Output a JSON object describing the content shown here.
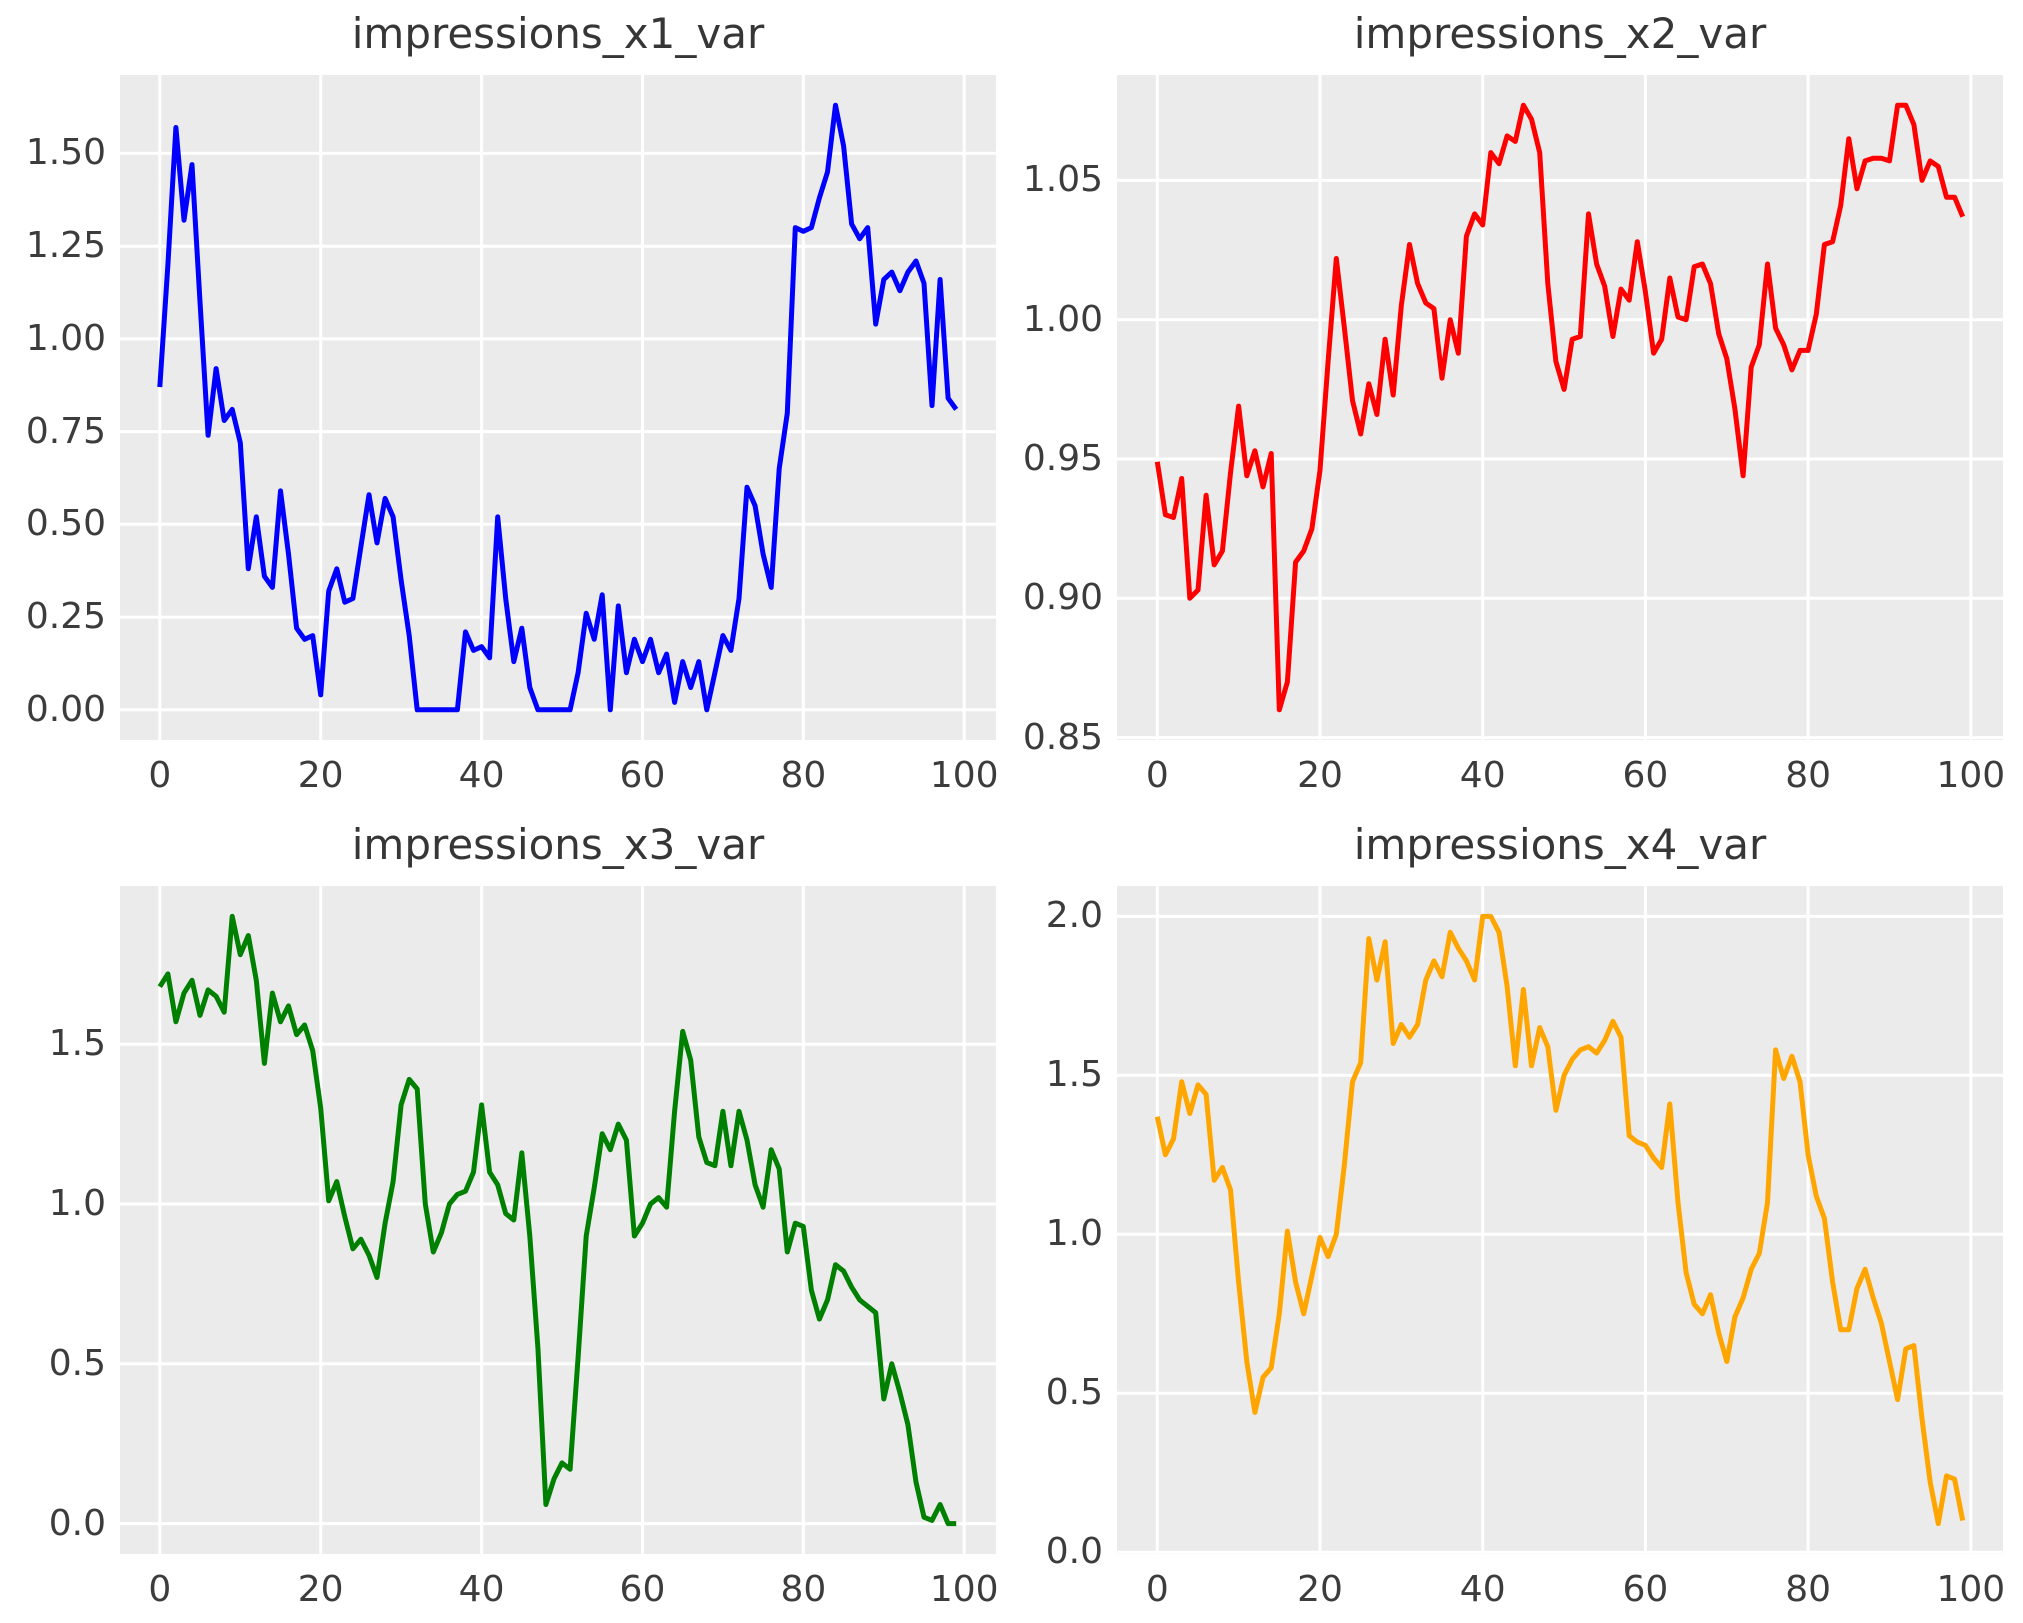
{
  "figure": {
    "background": "#ffffff",
    "plot_background": "#ebebeb",
    "grid_color": "#ffffff",
    "tick_color": "#3c3c3c",
    "title_color": "#363636"
  },
  "chart_data": [
    {
      "type": "line",
      "title": "impressions_x1_var",
      "xlabel": "",
      "ylabel": "",
      "color": "#0000ff",
      "grid": true,
      "legend": false,
      "x_start": 0,
      "x_step": 1,
      "xlim": [
        -4.95,
        103.95
      ],
      "ylim": [
        -0.0815,
        1.7115
      ],
      "xtick_values": [
        0,
        20,
        40,
        60,
        80,
        100
      ],
      "xtick_labels": [
        "0",
        "20",
        "40",
        "60",
        "80",
        "100"
      ],
      "ytick_values": [
        0.0,
        0.25,
        0.5,
        0.75,
        1.0,
        1.25,
        1.5
      ],
      "ytick_labels": [
        "0.00",
        "0.25",
        "0.50",
        "0.75",
        "1.00",
        "1.25",
        "1.50"
      ],
      "values": [
        0.87,
        1.2,
        1.57,
        1.32,
        1.47,
        1.1,
        0.74,
        0.92,
        0.78,
        0.81,
        0.72,
        0.38,
        0.52,
        0.36,
        0.33,
        0.59,
        0.42,
        0.22,
        0.19,
        0.2,
        0.04,
        0.32,
        0.38,
        0.29,
        0.3,
        0.44,
        0.58,
        0.45,
        0.57,
        0.52,
        0.35,
        0.2,
        0.0,
        0.0,
        0.0,
        0.0,
        0.0,
        0.0,
        0.21,
        0.16,
        0.17,
        0.14,
        0.52,
        0.3,
        0.13,
        0.22,
        0.06,
        0.0,
        0.0,
        0.0,
        0.0,
        0.0,
        0.1,
        0.26,
        0.19,
        0.31,
        0.0,
        0.28,
        0.1,
        0.19,
        0.13,
        0.19,
        0.1,
        0.15,
        0.02,
        0.13,
        0.06,
        0.13,
        0.0,
        0.1,
        0.2,
        0.16,
        0.3,
        0.6,
        0.55,
        0.42,
        0.33,
        0.65,
        0.8,
        1.3,
        1.29,
        1.3,
        1.38,
        1.45,
        1.63,
        1.52,
        1.31,
        1.27,
        1.3,
        1.04,
        1.16,
        1.18,
        1.13,
        1.18,
        1.21,
        1.15,
        0.82,
        1.16,
        0.84,
        0.81
      ]
    },
    {
      "type": "line",
      "title": "impressions_x2_var",
      "xlabel": "",
      "ylabel": "",
      "color": "#ff0000",
      "grid": true,
      "legend": false,
      "x_start": 0,
      "x_step": 1,
      "xlim": [
        -4.95,
        103.95
      ],
      "ylim": [
        0.84915,
        1.08785
      ],
      "xtick_values": [
        0,
        20,
        40,
        60,
        80,
        100
      ],
      "xtick_labels": [
        "0",
        "20",
        "40",
        "60",
        "80",
        "100"
      ],
      "ytick_values": [
        0.85,
        0.9,
        0.95,
        1.0,
        1.05
      ],
      "ytick_labels": [
        "0.85",
        "0.90",
        "0.95",
        "1.00",
        "1.05"
      ],
      "values": [
        0.949,
        0.93,
        0.929,
        0.943,
        0.9,
        0.903,
        0.937,
        0.912,
        0.917,
        0.945,
        0.969,
        0.944,
        0.953,
        0.94,
        0.952,
        0.86,
        0.87,
        0.913,
        0.917,
        0.925,
        0.946,
        0.985,
        1.022,
        0.997,
        0.971,
        0.959,
        0.977,
        0.966,
        0.993,
        0.973,
        1.005,
        1.027,
        1.013,
        1.006,
        1.004,
        0.979,
        1.0,
        0.988,
        1.03,
        1.038,
        1.034,
        1.06,
        1.056,
        1.066,
        1.064,
        1.077,
        1.072,
        1.06,
        1.013,
        0.985,
        0.975,
        0.993,
        0.994,
        1.038,
        1.02,
        1.012,
        0.994,
        1.011,
        1.007,
        1.028,
        1.01,
        0.988,
        0.993,
        1.015,
        1.001,
        1.0,
        1.019,
        1.02,
        1.013,
        0.995,
        0.986,
        0.968,
        0.944,
        0.983,
        0.991,
        1.02,
        0.997,
        0.991,
        0.982,
        0.989,
        0.989,
        1.002,
        1.027,
        1.028,
        1.041,
        1.065,
        1.047,
        1.057,
        1.058,
        1.058,
        1.057,
        1.077,
        1.077,
        1.07,
        1.05,
        1.057,
        1.055,
        1.044,
        1.044,
        1.037
      ]
    },
    {
      "type": "line",
      "title": "impressions_x3_var",
      "xlabel": "",
      "ylabel": "",
      "color": "#008000",
      "grid": true,
      "legend": false,
      "x_start": 0,
      "x_step": 1,
      "xlim": [
        -4.95,
        103.95
      ],
      "ylim": [
        -0.095,
        1.995
      ],
      "xtick_values": [
        0,
        20,
        40,
        60,
        80,
        100
      ],
      "xtick_labels": [
        "0",
        "20",
        "40",
        "60",
        "80",
        "100"
      ],
      "ytick_values": [
        0.0,
        0.5,
        1.0,
        1.5
      ],
      "ytick_labels": [
        "0.0",
        "0.5",
        "1.0",
        "1.5"
      ],
      "values": [
        1.68,
        1.72,
        1.57,
        1.66,
        1.7,
        1.59,
        1.67,
        1.65,
        1.6,
        1.9,
        1.78,
        1.84,
        1.7,
        1.44,
        1.66,
        1.57,
        1.62,
        1.53,
        1.56,
        1.48,
        1.3,
        1.01,
        1.07,
        0.96,
        0.86,
        0.89,
        0.84,
        0.77,
        0.94,
        1.07,
        1.31,
        1.39,
        1.36,
        1.0,
        0.85,
        0.91,
        1.0,
        1.03,
        1.04,
        1.1,
        1.31,
        1.1,
        1.06,
        0.97,
        0.95,
        1.16,
        0.9,
        0.55,
        0.06,
        0.14,
        0.19,
        0.17,
        0.52,
        0.9,
        1.05,
        1.22,
        1.17,
        1.25,
        1.2,
        0.9,
        0.94,
        1.0,
        1.02,
        0.99,
        1.29,
        1.54,
        1.45,
        1.21,
        1.13,
        1.12,
        1.29,
        1.12,
        1.29,
        1.2,
        1.06,
        0.99,
        1.17,
        1.11,
        0.85,
        0.94,
        0.93,
        0.73,
        0.64,
        0.7,
        0.81,
        0.79,
        0.74,
        0.7,
        0.68,
        0.66,
        0.39,
        0.5,
        0.41,
        0.31,
        0.13,
        0.02,
        0.01,
        0.06,
        0.0,
        0.0
      ]
    },
    {
      "type": "line",
      "title": "impressions_x4_var",
      "xlabel": "",
      "ylabel": "",
      "color": "#ffa500",
      "grid": true,
      "legend": false,
      "x_start": 0,
      "x_step": 1,
      "xlim": [
        -4.95,
        103.95
      ],
      "ylim": [
        -0.0055,
        2.0955
      ],
      "xtick_values": [
        0,
        20,
        40,
        60,
        80,
        100
      ],
      "xtick_labels": [
        "0",
        "20",
        "40",
        "60",
        "80",
        "100"
      ],
      "ytick_values": [
        0.0,
        0.5,
        1.0,
        1.5,
        2.0
      ],
      "ytick_labels": [
        "0.0",
        "0.5",
        "1.0",
        "1.5",
        "2.0"
      ],
      "values": [
        1.37,
        1.25,
        1.3,
        1.48,
        1.38,
        1.47,
        1.44,
        1.17,
        1.21,
        1.14,
        0.85,
        0.6,
        0.44,
        0.55,
        0.58,
        0.75,
        1.01,
        0.85,
        0.75,
        0.87,
        0.99,
        0.93,
        1.0,
        1.22,
        1.48,
        1.54,
        1.93,
        1.8,
        1.92,
        1.6,
        1.66,
        1.62,
        1.66,
        1.8,
        1.86,
        1.81,
        1.95,
        1.9,
        1.86,
        1.8,
        2.0,
        2.0,
        1.95,
        1.78,
        1.53,
        1.77,
        1.53,
        1.65,
        1.59,
        1.39,
        1.5,
        1.55,
        1.58,
        1.59,
        1.57,
        1.61,
        1.67,
        1.62,
        1.31,
        1.29,
        1.28,
        1.24,
        1.21,
        1.41,
        1.1,
        0.88,
        0.78,
        0.75,
        0.81,
        0.69,
        0.6,
        0.74,
        0.8,
        0.89,
        0.94,
        1.1,
        1.58,
        1.49,
        1.56,
        1.48,
        1.25,
        1.12,
        1.05,
        0.85,
        0.7,
        0.7,
        0.83,
        0.89,
        0.8,
        0.72,
        0.6,
        0.48,
        0.64,
        0.65,
        0.42,
        0.22,
        0.09,
        0.24,
        0.23,
        0.1
      ]
    }
  ]
}
